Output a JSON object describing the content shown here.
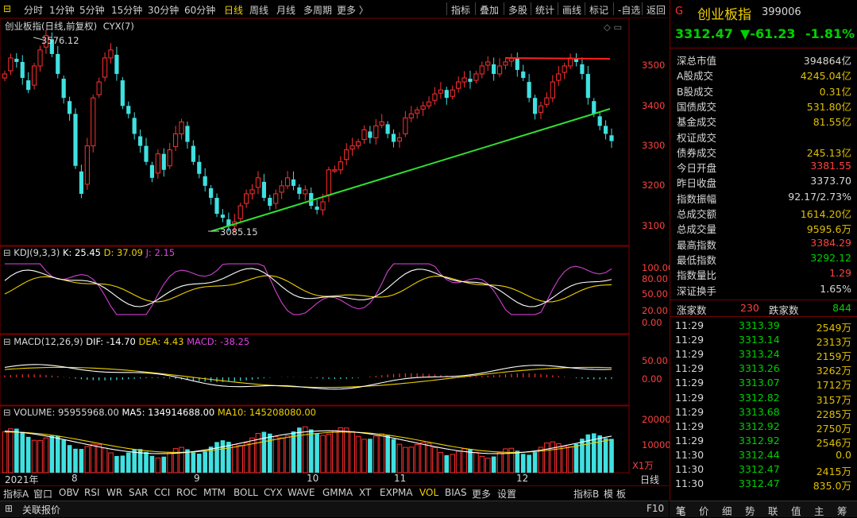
{
  "toolbar": {
    "periods": [
      "分时",
      "1分钟",
      "5分钟",
      "15分钟",
      "30分钟",
      "60分钟",
      "日线",
      "周线",
      "月线",
      "多周期",
      "更多 〉"
    ],
    "active_period": "日线",
    "tools": [
      "指标",
      "叠加",
      "多股",
      "统计",
      "画线",
      "标记",
      "-自选",
      "返回"
    ]
  },
  "main_chart": {
    "title": "创业板指(日线,前复权)",
    "indicator": "CYX(7)",
    "high_label": "3576.12",
    "low_label": "3085.15",
    "y_ticks": [
      "3500",
      "3400",
      "3300",
      "3200",
      "3100"
    ]
  },
  "kdj": {
    "label": "KDJ(9,3,3)",
    "k": "K: 25.45",
    "d": "D: 37.09",
    "j": "J: 2.15",
    "y_ticks": [
      "100.00",
      "80.00",
      "50.00",
      "20.00",
      "0.00"
    ]
  },
  "macd": {
    "label": "MACD(12,26,9)",
    "dif": "DIF: -14.70",
    "dea": "DEA: 4.43",
    "macd": "MACD: -38.25",
    "y_ticks": [
      "50.00",
      "0.00"
    ]
  },
  "volume": {
    "label": "VOLUME: 95955968.00",
    "ma5": "MA5: 134914688.00",
    "ma10": "MA10: 145208080.00",
    "y_ticks": [
      "20000",
      "10000"
    ],
    "unit": "X1万"
  },
  "x_axis": {
    "labels": [
      "2021年",
      "8",
      "9",
      "10",
      "11",
      "12"
    ],
    "right_label": "日线"
  },
  "bottom_tabs": [
    "指标A",
    "窗口",
    "OBV",
    "RSI",
    "WR",
    "SAR",
    "CCI",
    "ROC",
    "MTM",
    "BOLL",
    "CYX",
    "WAVE",
    "GMMA",
    "XT",
    "EXPMA",
    "VOL",
    "BIAS",
    "更多",
    "设置"
  ],
  "active_tab": "VOL",
  "bottom_right_tabs": [
    "指标B",
    "模",
    "板"
  ],
  "status": {
    "left": "关联报价",
    "right": "F10"
  },
  "quote": {
    "badge": "G",
    "name": "创业板指",
    "code": "399006",
    "price": "3312.47",
    "change": "▼-61.23",
    "pct": "-1.81%"
  },
  "stats": [
    {
      "k": "深总市值",
      "v": "394864亿",
      "c": "#d8d8d8"
    },
    {
      "k": "A股成交",
      "v": "4245.04亿",
      "c": "#e0c000"
    },
    {
      "k": "B股成交",
      "v": "0.31亿",
      "c": "#e0c000"
    },
    {
      "k": "国债成交",
      "v": "531.80亿",
      "c": "#e0c000"
    },
    {
      "k": "基金成交",
      "v": "81.55亿",
      "c": "#e0c000"
    },
    {
      "k": "权证成交",
      "v": "",
      "c": "#e0c000"
    },
    {
      "k": "债券成交",
      "v": "245.13亿",
      "c": "#e0c000"
    },
    {
      "k": "今日开盘",
      "v": "3381.55",
      "c": "#ff4040"
    },
    {
      "k": "昨日收盘",
      "v": "3373.70",
      "c": "#d8d8d8"
    },
    {
      "k": "指数振幅",
      "v": "92.17/2.73%",
      "c": "#d8d8d8"
    },
    {
      "k": "总成交额",
      "v": "1614.20亿",
      "c": "#e0c000"
    },
    {
      "k": "总成交量",
      "v": "9595.6万",
      "c": "#e0c000"
    },
    {
      "k": "最高指数",
      "v": "3384.29",
      "c": "#ff4040"
    },
    {
      "k": "最低指数",
      "v": "3292.12",
      "c": "#00d000"
    },
    {
      "k": "指数量比",
      "v": "1.29",
      "c": "#ff4040"
    },
    {
      "k": "深证换手",
      "v": "1.65%",
      "c": "#d8d8d8"
    }
  ],
  "breadth": {
    "up_label": "涨家数",
    "up": "230",
    "down_label": "跌家数",
    "down": "844"
  },
  "ticks": [
    {
      "t": "11:29",
      "p": "3313.39",
      "v": "2549万"
    },
    {
      "t": "11:29",
      "p": "3313.14",
      "v": "2313万"
    },
    {
      "t": "11:29",
      "p": "3313.24",
      "v": "2159万"
    },
    {
      "t": "11:29",
      "p": "3313.26",
      "v": "3262万"
    },
    {
      "t": "11:29",
      "p": "3313.07",
      "v": "1712万"
    },
    {
      "t": "11:29",
      "p": "3312.82",
      "v": "3157万"
    },
    {
      "t": "11:29",
      "p": "3313.68",
      "v": "2285万"
    },
    {
      "t": "11:29",
      "p": "3312.92",
      "v": "2750万"
    },
    {
      "t": "11:29",
      "p": "3312.92",
      "v": "2546万"
    },
    {
      "t": "11:30",
      "p": "3312.44",
      "v": "0.0"
    },
    {
      "t": "11:30",
      "p": "3312.47",
      "v": "2415万"
    },
    {
      "t": "11:30",
      "p": "3312.47",
      "v": "835.0万"
    }
  ],
  "right_bottom_tabs": [
    "笔",
    "价",
    "细",
    "势",
    "联",
    "值",
    "主",
    "筹"
  ],
  "colors": {
    "up": "#ff3030",
    "down": "#40e0e0",
    "green_line": "#30e030",
    "red_line": "#ff2020"
  },
  "chart_data": {
    "type": "candlestick",
    "close_estimates": [
      3480,
      3520,
      3510,
      3470,
      3440,
      3500,
      3540,
      3576,
      3530,
      3480,
      3420,
      3380,
      3250,
      3180,
      3300,
      3420,
      3460,
      3520,
      3540,
      3480,
      3400,
      3380,
      3330,
      3300,
      3260,
      3220,
      3280,
      3240,
      3290,
      3330,
      3360,
      3310,
      3260,
      3230,
      3200,
      3170,
      3130,
      3120,
      3100,
      3110,
      3150,
      3180,
      3190,
      3220,
      3170,
      3150,
      3180,
      3200,
      3220,
      3200,
      3180,
      3190,
      3150,
      3140,
      3160,
      3240,
      3240,
      3260,
      3290,
      3300,
      3310,
      3340,
      3320,
      3350,
      3360,
      3330,
      3310,
      3320,
      3370,
      3380,
      3390,
      3400,
      3410,
      3430,
      3440,
      3420,
      3440,
      3460,
      3470,
      3460,
      3480,
      3500,
      3510,
      3480,
      3500,
      3510,
      3520,
      3490,
      3470,
      3420,
      3380,
      3400,
      3420,
      3460,
      3480,
      3500,
      3520,
      3510,
      3480,
      3420,
      3380,
      3350,
      3330,
      3312
    ]
  }
}
